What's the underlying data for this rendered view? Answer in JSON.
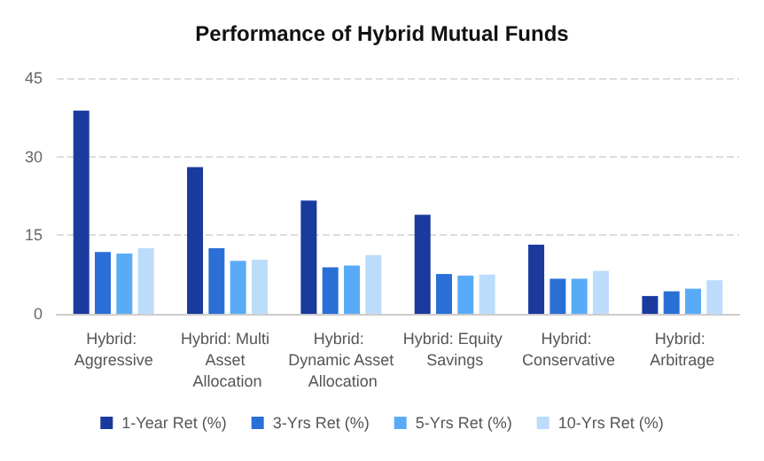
{
  "chart_data": {
    "type": "bar",
    "title": "Performance of Hybrid Mutual Funds",
    "categories": [
      "Hybrid: Aggressive",
      "Hybrid: Multi Asset Allocation",
      "Hybrid: Dynamic Asset Allocation",
      "Hybrid: Equity Savings",
      "Hybrid: Conservative",
      "Hybrid: Arbitrage"
    ],
    "series": [
      {
        "name": "1-Year Ret (%)",
        "color": "#1a3a9e",
        "values": [
          38.8,
          28.0,
          21.6,
          18.9,
          13.2,
          3.4
        ]
      },
      {
        "name": "3-Yrs Ret (%)",
        "color": "#2a6fd6",
        "values": [
          11.8,
          12.5,
          8.9,
          7.6,
          6.7,
          4.3
        ]
      },
      {
        "name": "5-Yrs Ret (%)",
        "color": "#5aabf7",
        "values": [
          11.5,
          10.1,
          9.2,
          7.3,
          6.7,
          4.8
        ]
      },
      {
        "name": "10-Yrs Ret (%)",
        "color": "#bcdcfb",
        "values": [
          12.5,
          10.3,
          11.2,
          7.5,
          8.2,
          6.4
        ]
      }
    ],
    "ylim": [
      0,
      45
    ],
    "yticks": [
      0,
      15,
      30,
      45
    ],
    "grid": "y",
    "legend": "bottom"
  }
}
